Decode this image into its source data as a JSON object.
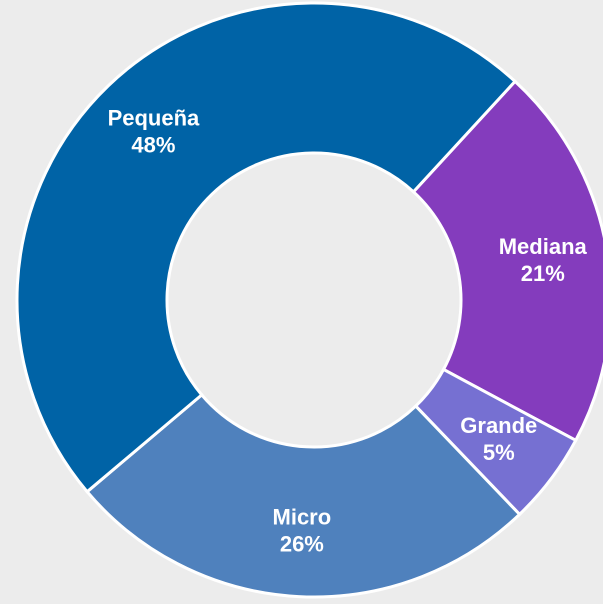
{
  "chart_data": {
    "type": "donut",
    "categories": [
      "Mediana",
      "Grande",
      "Micro",
      "Pequeña"
    ],
    "values": [
      21,
      5,
      26,
      48
    ],
    "value_labels": [
      "21%",
      "5%",
      "26%",
      "48%"
    ],
    "colors": [
      "#843cbd",
      "#7670d2",
      "#4f81bd",
      "#0063a6"
    ]
  }
}
